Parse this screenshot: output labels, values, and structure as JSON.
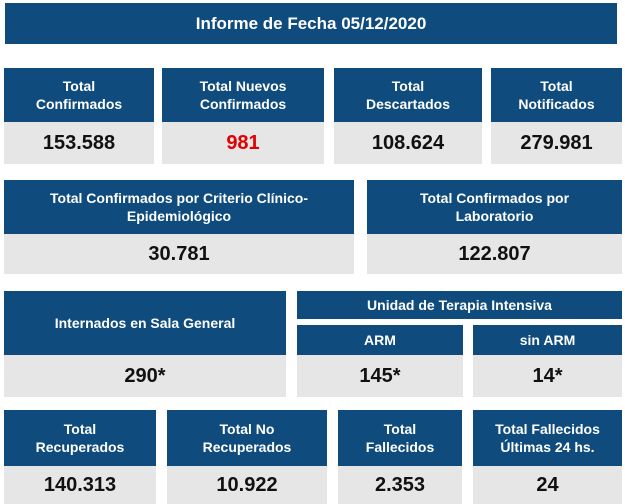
{
  "report": {
    "title": "Informe de Fecha 05/12/2020"
  },
  "row1": [
    {
      "label": "Total\nConfirmados",
      "value": "153.588"
    },
    {
      "label": "Total Nuevos\nConfirmados",
      "value": "981",
      "value_color": "#e30000"
    },
    {
      "label": "Total\nDescartados",
      "value": "108.624"
    },
    {
      "label": "Total\nNotificados",
      "value": "279.981"
    }
  ],
  "row2": [
    {
      "label": "Total Confirmados por Criterio Clínico-\nEpidemiológico",
      "value": "30.781"
    },
    {
      "label": "Total Confirmados por\nLaboratorio",
      "value": "122.807"
    }
  ],
  "row3": {
    "internados": {
      "label": "Internados en Sala General",
      "value": "290*"
    },
    "uti": {
      "label": "Unidad de Terapia Intensiva",
      "arm": {
        "label": "ARM",
        "value": "145*"
      },
      "sin_arm": {
        "label": "sin ARM",
        "value": "14*"
      }
    }
  },
  "row4": [
    {
      "label": "Total\nRecuperados",
      "value": "140.313"
    },
    {
      "label": "Total No\nRecuperados",
      "value": "10.922"
    },
    {
      "label": "Total\nFallecidos",
      "value": "2.353"
    },
    {
      "label": "Total Fallecidos\nÚltimas 24 hs.",
      "value": "24"
    }
  ],
  "colors": {
    "header_bg": "#0f4c7d",
    "value_bg": "#e6e6e6",
    "highlight_value": "#e30000"
  }
}
